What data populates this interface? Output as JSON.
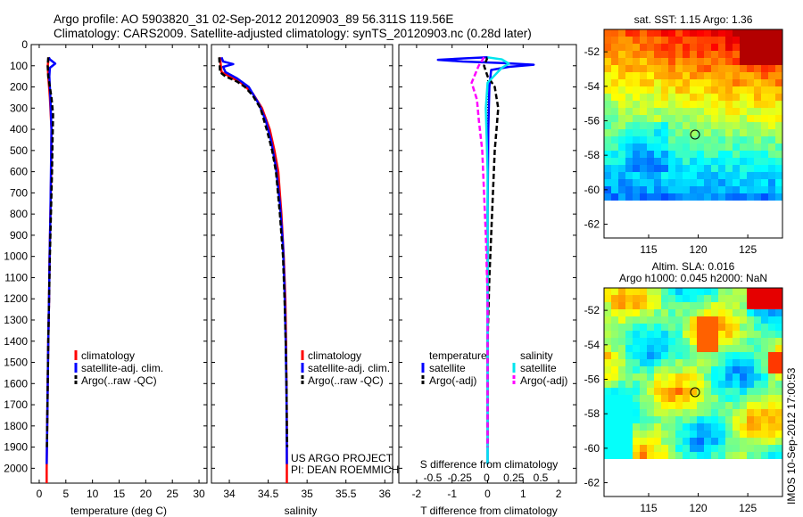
{
  "header": {
    "line1": "Argo profile: AO 5903820_31 02-Sep-2012 20120903_89 56.311S 119.56E",
    "line2": "Climatology: CARS2009. Satellite-adjusted climatology: synTS_20120903.nc (0.28d later)"
  },
  "colors": {
    "climatology": "#ff0000",
    "satellite": "#0000ff",
    "argo": "#000000",
    "sal_satellite": "#00e5ee",
    "sal_argo": "#ff00ff"
  },
  "legend": {
    "climatology": "climatology",
    "satellite_adj": "satellite-adj. clim.",
    "argo_raw": "Argo(..raw -QC)",
    "temperature_hdr": "temperature",
    "salinity_hdr": "salinity",
    "satellite": "satellite",
    "argo_adj": "Argo(-adj)"
  },
  "credits": {
    "line1": "US ARGO PROJECT",
    "line2": "PI: DEAN ROEMMICH"
  },
  "timestamp": "IMOS 10-Sep-2012 17:00:53",
  "map_sst": {
    "title": "sat. SST: 1.15 Argo: 1.36"
  },
  "map_sla": {
    "title1": "Altim. SLA: 0.016",
    "title2": "Argo h1000: 0.045 h2000: NaN"
  },
  "chart_data": [
    {
      "type": "line",
      "xlabel": "temperature (deg C)",
      "xticks": [
        "0",
        "5",
        "10",
        "15",
        "20",
        "25",
        "30"
      ],
      "xlim": [
        -1.5,
        31.5
      ],
      "ylim": [
        2070,
        0
      ],
      "yticks": [
        "0",
        "100",
        "200",
        "300",
        "400",
        "500",
        "600",
        "700",
        "800",
        "900",
        "1000",
        "1100",
        "1200",
        "1300",
        "1400",
        "1500",
        "1600",
        "1700",
        "1800",
        "1900",
        "2000"
      ],
      "series": [
        {
          "name": "climatology",
          "color": "#ff0000",
          "dash": "solid",
          "points": [
            [
              1.8,
              60
            ],
            [
              1.6,
              100
            ],
            [
              1.7,
              150
            ],
            [
              2.0,
              250
            ],
            [
              2.3,
              400
            ],
            [
              2.25,
              600
            ],
            [
              2.1,
              800
            ],
            [
              1.95,
              1000
            ],
            [
              1.85,
              1200
            ],
            [
              1.7,
              1400
            ],
            [
              1.6,
              1600
            ],
            [
              1.5,
              1800
            ],
            [
              1.4,
              2000
            ],
            [
              1.4,
              2070
            ]
          ]
        },
        {
          "name": "satellite-adj. clim.",
          "color": "#0000ff",
          "dash": "solid",
          "points": [
            [
              1.8,
              60
            ],
            [
              2.0,
              70
            ],
            [
              3.0,
              90
            ],
            [
              2.0,
              110
            ],
            [
              1.9,
              150
            ],
            [
              2.1,
              250
            ],
            [
              2.3,
              400
            ],
            [
              2.2,
              600
            ],
            [
              2.1,
              800
            ],
            [
              1.95,
              1000
            ],
            [
              1.85,
              1200
            ],
            [
              1.7,
              1400
            ],
            [
              1.6,
              1600
            ],
            [
              1.5,
              1800
            ],
            [
              1.4,
              1980
            ]
          ]
        },
        {
          "name": "Argo(..raw -QC)",
          "color": "#000000",
          "dash": "dash",
          "points": [
            [
              1.7,
              60
            ],
            [
              1.6,
              100
            ],
            [
              1.7,
              150
            ],
            [
              2.3,
              250
            ],
            [
              2.6,
              330
            ],
            [
              2.5,
              450
            ],
            [
              2.4,
              600
            ],
            [
              2.2,
              800
            ],
            [
              2.0,
              1000
            ],
            [
              1.85,
              1200
            ],
            [
              1.7,
              1400
            ],
            [
              1.6,
              1600
            ],
            [
              1.5,
              1800
            ],
            [
              1.45,
              1900
            ]
          ]
        }
      ]
    },
    {
      "type": "line",
      "xlabel": "salinity",
      "xticks": [
        "34",
        "34.5",
        "35",
        "35.5",
        "36"
      ],
      "xlim": [
        33.77,
        36.1
      ],
      "ylim": [
        2070,
        0
      ],
      "series": [
        {
          "name": "climatology",
          "color": "#ff0000",
          "dash": "solid",
          "points": [
            [
              33.88,
              60
            ],
            [
              33.89,
              100
            ],
            [
              33.9,
              130
            ],
            [
              34.0,
              150
            ],
            [
              34.15,
              180
            ],
            [
              34.3,
              230
            ],
            [
              34.42,
              300
            ],
            [
              34.52,
              400
            ],
            [
              34.58,
              500
            ],
            [
              34.63,
              600
            ],
            [
              34.67,
              800
            ],
            [
              34.7,
              1000
            ],
            [
              34.72,
              1200
            ],
            [
              34.73,
              1400
            ],
            [
              34.735,
              1600
            ],
            [
              34.74,
              1800
            ],
            [
              34.74,
              2070
            ]
          ]
        },
        {
          "name": "satellite-adj. clim.",
          "color": "#0000ff",
          "dash": "solid",
          "points": [
            [
              33.9,
              60
            ],
            [
              33.92,
              80
            ],
            [
              34.05,
              92
            ],
            [
              33.92,
              105
            ],
            [
              33.95,
              130
            ],
            [
              34.1,
              160
            ],
            [
              34.25,
              200
            ],
            [
              34.38,
              280
            ],
            [
              34.47,
              360
            ],
            [
              34.54,
              460
            ],
            [
              34.6,
              580
            ],
            [
              34.65,
              750
            ],
            [
              34.69,
              950
            ],
            [
              34.71,
              1150
            ],
            [
              34.725,
              1400
            ],
            [
              34.735,
              1650
            ],
            [
              34.74,
              1980
            ]
          ]
        },
        {
          "name": "Argo(..raw -QC)",
          "color": "#000000",
          "dash": "dash",
          "points": [
            [
              33.87,
              60
            ],
            [
              33.88,
              130
            ],
            [
              33.95,
              150
            ],
            [
              34.1,
              175
            ],
            [
              34.2,
              200
            ],
            [
              34.3,
              240
            ],
            [
              34.4,
              300
            ],
            [
              34.48,
              400
            ],
            [
              34.55,
              500
            ],
            [
              34.6,
              600
            ],
            [
              34.65,
              800
            ],
            [
              34.69,
              1000
            ],
            [
              34.71,
              1200
            ],
            [
              34.725,
              1400
            ],
            [
              34.735,
              1600
            ],
            [
              34.74,
              1800
            ],
            [
              34.745,
              1900
            ]
          ]
        }
      ]
    },
    {
      "type": "line",
      "xlabel": "T difference from climatology",
      "xticks": [
        "-2",
        "-1",
        "0",
        "1",
        "2"
      ],
      "xlim": [
        -2.5,
        2.5
      ],
      "top_label": "S difference from climatology",
      "top_ticks": [
        "-0.5",
        "-0.25",
        "0",
        "0.25",
        "0.5"
      ],
      "ylim": [
        2070,
        0
      ],
      "series": [
        {
          "name": "temperature satellite",
          "color": "#0000ff",
          "dash": "solid",
          "points": [
            [
              0,
              60
            ],
            [
              -0.6,
              65
            ],
            [
              -1.4,
              72
            ],
            [
              -0.7,
              80
            ],
            [
              0.5,
              88
            ],
            [
              1.3,
              95
            ],
            [
              0.6,
              105
            ],
            [
              0.1,
              120
            ],
            [
              0.05,
              200
            ],
            [
              0.02,
              400
            ],
            [
              0.0,
              800
            ],
            [
              0.0,
              1200
            ],
            [
              0.0,
              1600
            ],
            [
              0.0,
              1980
            ]
          ]
        },
        {
          "name": "temperature Argo(-adj)",
          "color": "#000000",
          "dash": "dash",
          "points": [
            [
              0,
              60
            ],
            [
              -0.1,
              100
            ],
            [
              0.0,
              150
            ],
            [
              0.2,
              200
            ],
            [
              0.3,
              300
            ],
            [
              0.25,
              400
            ],
            [
              0.2,
              500
            ],
            [
              0.15,
              700
            ],
            [
              0.1,
              900
            ],
            [
              0.05,
              1100
            ],
            [
              0.0,
              1400
            ],
            [
              0.0,
              1600
            ],
            [
              0.0,
              1900
            ]
          ]
        },
        {
          "name": "salinity satellite",
          "color": "#00e5ee",
          "dash": "solid",
          "points": [
            [
              0,
              60
            ],
            [
              0.4,
              70
            ],
            [
              0.6,
              90
            ],
            [
              0.4,
              110
            ],
            [
              0.0,
              180
            ],
            [
              -0.05,
              300
            ],
            [
              0.0,
              600
            ],
            [
              0.0,
              1000
            ],
            [
              0.0,
              1400
            ],
            [
              0.0,
              1980
            ]
          ]
        },
        {
          "name": "salinity Argo(-adj)",
          "color": "#ff00ff",
          "dash": "dash",
          "points": [
            [
              -0.1,
              60
            ],
            [
              -0.25,
              100
            ],
            [
              -0.45,
              180
            ],
            [
              -0.3,
              260
            ],
            [
              -0.25,
              350
            ],
            [
              -0.15,
              500
            ],
            [
              -0.1,
              700
            ],
            [
              -0.05,
              900
            ],
            [
              0.0,
              1200
            ],
            [
              0.0,
              1600
            ],
            [
              0.0,
              1900
            ]
          ]
        }
      ]
    },
    {
      "type": "heatmap",
      "title": "sat. SST: 1.15 Argo: 1.36",
      "xticks": [
        "115",
        "120",
        "125"
      ],
      "yticks": [
        "-52",
        "-54",
        "-56",
        "-58",
        "-60",
        "-62"
      ],
      "xlim": [
        110.5,
        128.5
      ],
      "ylim": [
        -62.8,
        -50.7
      ],
      "marker": [
        119.6,
        -56.3
      ]
    },
    {
      "type": "heatmap",
      "title": "Altim. SLA: 0.016",
      "xticks": [
        "115",
        "120",
        "125"
      ],
      "yticks": [
        "-52",
        "-54",
        "-56",
        "-58",
        "-60",
        "-62"
      ],
      "xlim": [
        110.5,
        128.5
      ],
      "ylim": [
        -62.8,
        -50.7
      ],
      "marker": [
        119.6,
        -56.3
      ]
    }
  ]
}
